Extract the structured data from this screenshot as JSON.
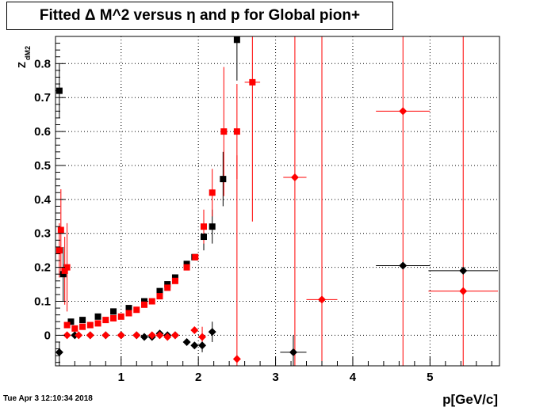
{
  "chart_data": {
    "type": "scatter",
    "title": "Fitted Δ M^2 versus η and p for Global pion+",
    "xlabel": "p[GeV/c]",
    "ylabel": "Z",
    "ylabel_sub": "dM2",
    "xlim": [
      0.15,
      5.9
    ],
    "ylim": [
      -0.09,
      0.88
    ],
    "xticks": [
      1,
      2,
      3,
      4,
      5
    ],
    "yticks": [
      0,
      0.1,
      0.2,
      0.3,
      0.4,
      0.5,
      0.6,
      0.7,
      0.8
    ],
    "grid": true,
    "legend": null,
    "series": [
      {
        "marker": "square",
        "color": "#000000",
        "points": [
          {
            "x": 0.2,
            "y": 0.72,
            "ey": 0.08
          },
          {
            "x": 0.25,
            "y": 0.18,
            "ey": 0.08
          },
          {
            "x": 0.35,
            "y": 0.04
          },
          {
            "x": 0.5,
            "y": 0.045
          },
          {
            "x": 0.7,
            "y": 0.055
          },
          {
            "x": 0.9,
            "y": 0.07
          },
          {
            "x": 1.1,
            "y": 0.08
          },
          {
            "x": 1.3,
            "y": 0.1
          },
          {
            "x": 1.5,
            "y": 0.13
          },
          {
            "x": 1.6,
            "y": 0.15
          },
          {
            "x": 1.7,
            "y": 0.17
          },
          {
            "x": 1.85,
            "y": 0.21
          },
          {
            "x": 1.95,
            "y": 0.23
          },
          {
            "x": 2.07,
            "y": 0.29,
            "ey": 0.04
          },
          {
            "x": 2.18,
            "y": 0.32,
            "ey": 0.05
          },
          {
            "x": 2.32,
            "y": 0.46,
            "ey": 0.08
          },
          {
            "x": 2.5,
            "y": 0.87,
            "ey": 0.12
          }
        ]
      },
      {
        "marker": "diamond",
        "color": "#000000",
        "points": [
          {
            "x": 0.2,
            "y": -0.05,
            "ey": 0.03
          },
          {
            "x": 0.4,
            "y": 0.0
          },
          {
            "x": 0.6,
            "y": 0.0
          },
          {
            "x": 0.8,
            "y": 0.0
          },
          {
            "x": 1.0,
            "y": 0.0
          },
          {
            "x": 1.2,
            "y": 0.0
          },
          {
            "x": 1.3,
            "y": -0.005
          },
          {
            "x": 1.4,
            "y": -0.005
          },
          {
            "x": 1.5,
            "y": 0.005
          },
          {
            "x": 1.6,
            "y": 0.0
          },
          {
            "x": 1.7,
            "y": 0.0
          },
          {
            "x": 1.85,
            "y": -0.02
          },
          {
            "x": 1.95,
            "y": -0.03
          },
          {
            "x": 2.05,
            "y": -0.03,
            "ey": 0.02
          },
          {
            "x": 2.18,
            "y": 0.01,
            "ey": 0.03
          },
          {
            "x": 3.23,
            "y": -0.05,
            "ey": 0.05,
            "ex": 0.17
          },
          {
            "x": 4.65,
            "y": 0.205,
            "ex": 0.35
          },
          {
            "x": 5.43,
            "y": 0.19,
            "ex": 0.45
          }
        ]
      },
      {
        "marker": "square",
        "color": "#ff0000",
        "points": [
          {
            "x": 0.2,
            "y": 0.25,
            "ey": 0.08
          },
          {
            "x": 0.22,
            "y": 0.31,
            "ey": 0.12
          },
          {
            "x": 0.27,
            "y": 0.19,
            "ey": 0.1
          },
          {
            "x": 0.3,
            "y": 0.2,
            "ey": 0.13
          },
          {
            "x": 0.3,
            "y": 0.03
          },
          {
            "x": 0.4,
            "y": 0.02
          },
          {
            "x": 0.5,
            "y": 0.025
          },
          {
            "x": 0.6,
            "y": 0.03
          },
          {
            "x": 0.7,
            "y": 0.035
          },
          {
            "x": 0.8,
            "y": 0.045
          },
          {
            "x": 0.9,
            "y": 0.05
          },
          {
            "x": 1.0,
            "y": 0.055
          },
          {
            "x": 1.1,
            "y": 0.065
          },
          {
            "x": 1.2,
            "y": 0.075
          },
          {
            "x": 1.3,
            "y": 0.09
          },
          {
            "x": 1.4,
            "y": 0.1
          },
          {
            "x": 1.5,
            "y": 0.115
          },
          {
            "x": 1.6,
            "y": 0.14
          },
          {
            "x": 1.7,
            "y": 0.16
          },
          {
            "x": 1.85,
            "y": 0.2
          },
          {
            "x": 1.96,
            "y": 0.23
          },
          {
            "x": 2.07,
            "y": 0.32,
            "ey": 0.05
          },
          {
            "x": 2.18,
            "y": 0.42,
            "ey": 0.07
          },
          {
            "x": 2.33,
            "y": 0.6,
            "ey": 0.19
          },
          {
            "x": 2.5,
            "y": 0.6,
            "ey": 0.14
          },
          {
            "x": 2.7,
            "y": 0.745,
            "ey": 0.41,
            "ex": 0.1
          }
        ]
      },
      {
        "marker": "diamond",
        "color": "#ff0000",
        "points": [
          {
            "x": 0.3,
            "y": 0.0
          },
          {
            "x": 0.45,
            "y": 0.0
          },
          {
            "x": 0.6,
            "y": 0.0
          },
          {
            "x": 0.8,
            "y": 0.0
          },
          {
            "x": 1.0,
            "y": 0.0
          },
          {
            "x": 1.2,
            "y": 0.0
          },
          {
            "x": 1.4,
            "y": 0.0
          },
          {
            "x": 1.5,
            "y": 0.0
          },
          {
            "x": 1.6,
            "y": -0.005
          },
          {
            "x": 1.7,
            "y": 0.0
          },
          {
            "x": 1.95,
            "y": 0.015
          },
          {
            "x": 2.05,
            "y": -0.005,
            "ey": 0.03
          },
          {
            "x": 2.5,
            "y": -0.07,
            "ey": 0.6
          },
          {
            "x": 3.25,
            "y": 0.465,
            "ey": 0.8,
            "ex": 0.15
          },
          {
            "x": 3.6,
            "y": 0.105,
            "ey": 0.8,
            "ex": 0.2
          },
          {
            "x": 4.65,
            "y": 0.66,
            "ey": 0.8,
            "ex": 0.35
          },
          {
            "x": 5.43,
            "y": 0.13,
            "ey": 0.8,
            "ex": 0.45
          }
        ]
      }
    ]
  },
  "footer": {
    "timestamp": "Tue Apr  3 12:10:34 2018"
  }
}
